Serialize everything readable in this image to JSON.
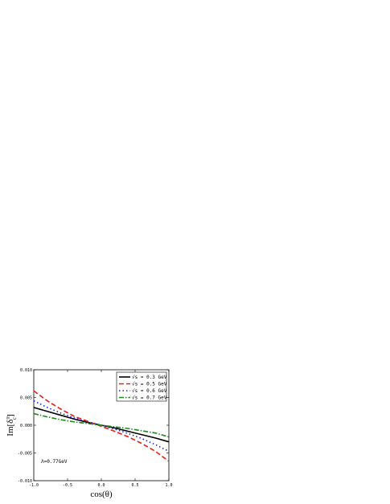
{
  "chart_data": {
    "type": "line",
    "xlabel": "cos(θ)",
    "ylabel": "Im[δ",
    "ylabel_sup": "π",
    "ylabel_sub": "c",
    "ylabel_close": "]",
    "xlim": [
      -1.0,
      1.0
    ],
    "ylim": [
      -0.01,
      0.01
    ],
    "xticks": [
      -1.0,
      -0.5,
      0.0,
      0.5,
      1.0
    ],
    "xtick_labels": [
      "-1.0",
      "-0.5",
      "0.0",
      "0.5",
      "1.0"
    ],
    "yticks": [
      -0.01,
      -0.005,
      0.0,
      0.005,
      0.01
    ],
    "ytick_labels": [
      "-0.010",
      "-0.005",
      "0.000",
      "0.005",
      "0.010"
    ],
    "grid": false,
    "legend_position": "top-right",
    "annotation": "Λ=0.77GeV",
    "x": [
      -1.0,
      -0.8,
      -0.6,
      -0.4,
      -0.2,
      0.0,
      0.2,
      0.4,
      0.6,
      0.8,
      1.0
    ],
    "series": [
      {
        "name": "√s = 0.3 GeV",
        "sqrt": "√s",
        "rest": " = 0.3 GeV",
        "color": "#000000",
        "dash": "none",
        "values": [
          0.0032,
          0.0025,
          0.0018,
          0.0011,
          0.0005,
          0.0,
          -0.0005,
          -0.0011,
          -0.0017,
          -0.0023,
          -0.003
        ]
      },
      {
        "name": "√s = 0.5 GeV",
        "sqrt": "√s",
        "rest": " = 0.5 GeV",
        "color": "#e8201c",
        "dash": "6,3",
        "values": [
          0.0062,
          0.0044,
          0.0029,
          0.0016,
          0.0007,
          -0.0002,
          -0.0011,
          -0.0021,
          -0.0033,
          -0.0047,
          -0.0065
        ]
      },
      {
        "name": "√s = 0.6 GeV",
        "sqrt": "√s",
        "rest": " = 0.6 GeV",
        "color": "#1d1df0",
        "dash": "1.5,3",
        "values": [
          0.0044,
          0.0032,
          0.0022,
          0.0013,
          0.0006,
          -0.0,
          -0.0007,
          -0.0015,
          -0.0024,
          -0.0035,
          -0.0047
        ]
      },
      {
        "name": "√s = 0.7 GeV",
        "sqrt": "√s",
        "rest": " = 0.7 GeV",
        "color": "#1a8a1a",
        "dash": "6,2,1.5,2",
        "values": [
          0.0021,
          0.0015,
          0.001,
          0.0006,
          0.0003,
          0.0,
          -0.0003,
          -0.0006,
          -0.001,
          -0.0014,
          -0.0021
        ]
      }
    ]
  }
}
